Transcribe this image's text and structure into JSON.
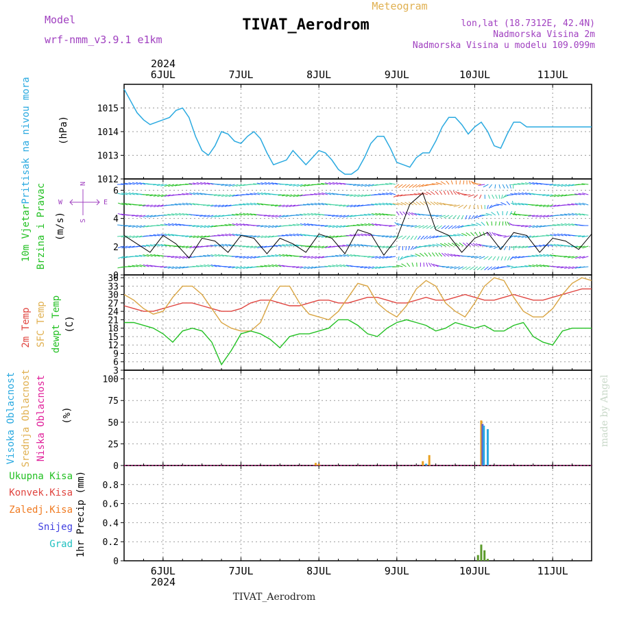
{
  "header": {
    "model_label": "Model",
    "model_value": "wrf-nmm_v3.9.1  e1km",
    "product": "Meteogram",
    "station": "TIVAT_Aerodrom",
    "lonlat": "lon,lat (18.7312E, 42.4N)",
    "elevation": "Nadmorska Visina 2m",
    "model_elevation": "Nadmorska Visina u modelu 109.099m",
    "credit": "made by Angel",
    "footer_station": "TIVAT_Aerodrom"
  },
  "time_axis": {
    "year": "2024",
    "labels": [
      "6JUL",
      "7JUL",
      "8JUL",
      "9JUL",
      "10JUL",
      "11JUL"
    ],
    "start_hour_before_first_label": 12,
    "hours_total": 144
  },
  "colors": {
    "pressure": "#29a9e0",
    "temp2m": "#e0443f",
    "sfc": "#d9a441",
    "dewpt": "#22c022",
    "cloud_high": "#29a9e0",
    "cloud_mid": "#e8a020",
    "cloud_low": "#e0209a",
    "precip_total": "#22c022",
    "precip_conv": "#e0443f",
    "precip_frozen": "#f07a20",
    "precip_snow": "#4040e0",
    "precip_hail": "#20c0c0",
    "wind_speed": "#000000"
  },
  "chart_data": [
    {
      "type": "line",
      "name": "pressure",
      "ylabel": "Pritisak na nivou mora",
      "unit": "(hPa)",
      "ylim": [
        1012,
        1016
      ],
      "yticks": [
        "1012",
        "1013",
        "1014",
        "1015"
      ],
      "x_hours": [
        0,
        2,
        4,
        6,
        8,
        10,
        12,
        14,
        16,
        18,
        20,
        22,
        24,
        26,
        28,
        30,
        32,
        34,
        36,
        38,
        40,
        42,
        44,
        46,
        48,
        50,
        52,
        54,
        56,
        58,
        60,
        62,
        64,
        66,
        68,
        70,
        72,
        74,
        76,
        78,
        80,
        82,
        84,
        86,
        88,
        90,
        92,
        94,
        96,
        98,
        100,
        102,
        104,
        106,
        108,
        110,
        112,
        114,
        116,
        118,
        120,
        122,
        124,
        126,
        128,
        130,
        132,
        134,
        136,
        138,
        140,
        142,
        144
      ],
      "values": [
        1015.8,
        1015.3,
        1014.8,
        1014.5,
        1014.3,
        1014.4,
        1014.5,
        1014.6,
        1014.9,
        1015.0,
        1014.6,
        1013.8,
        1013.2,
        1013.0,
        1013.4,
        1014.0,
        1013.9,
        1013.6,
        1013.5,
        1013.8,
        1014.0,
        1013.7,
        1013.1,
        1012.6,
        1012.7,
        1012.8,
        1013.2,
        1012.9,
        1012.6,
        1012.9,
        1013.2,
        1013.1,
        1012.8,
        1012.4,
        1012.2,
        1012.2,
        1012.4,
        1012.9,
        1013.5,
        1013.8,
        1013.8,
        1013.3,
        1012.7,
        1012.6,
        1012.5,
        1012.9,
        1013.1,
        1013.1,
        1013.6,
        1014.2,
        1014.6,
        1014.6,
        1014.3,
        1013.9,
        1014.2,
        1014.4,
        1014.0,
        1013.4,
        1013.3,
        1013.9,
        1014.4,
        1014.4,
        1014.2,
        1014.2,
        1014.2,
        1014.2,
        1014.2,
        1014.2,
        1014.2,
        1014.2,
        1014.2,
        1014.2,
        1014.2
      ]
    },
    {
      "type": "line",
      "name": "wind",
      "ylabel": "10m Vjetar Brzina i Pravac",
      "unit": "(m/s)",
      "ylim": [
        0,
        6.8
      ],
      "yticks": [
        "0",
        "2",
        "4",
        "6"
      ],
      "compass": {
        "n": "N",
        "s": "S",
        "w": "W",
        "e": "E"
      },
      "x_hours": [
        0,
        4,
        8,
        12,
        16,
        20,
        24,
        28,
        32,
        36,
        40,
        44,
        48,
        52,
        56,
        60,
        64,
        68,
        72,
        76,
        80,
        84,
        88,
        92,
        96,
        100,
        104,
        108,
        112,
        116,
        120,
        124,
        128,
        132,
        136,
        140,
        144
      ],
      "values": [
        2.8,
        2.2,
        1.6,
        2.8,
        2.2,
        1.2,
        2.6,
        2.4,
        1.6,
        2.8,
        2.6,
        1.5,
        2.6,
        2.2,
        1.6,
        2.9,
        2.6,
        1.5,
        3.2,
        2.9,
        1.4,
        2.6,
        5.0,
        5.8,
        3.2,
        2.8,
        1.6,
        2.6,
        3.0,
        1.8,
        3.0,
        2.8,
        1.6,
        2.6,
        2.4,
        1.8,
        2.9
      ]
    },
    {
      "type": "line",
      "name": "temperature",
      "ylabel_lines": [
        "2m Temp",
        "SFC Temp",
        "dewpt Temp"
      ],
      "unit": "(C)",
      "ylim": [
        3,
        37
      ],
      "yticks": [
        "3",
        "6",
        "9",
        "12",
        "15",
        "18",
        "21",
        "24",
        "27",
        "30",
        "33",
        "36"
      ],
      "x_hours": [
        0,
        3,
        6,
        9,
        12,
        15,
        18,
        21,
        24,
        27,
        30,
        33,
        36,
        39,
        42,
        45,
        48,
        51,
        54,
        57,
        60,
        63,
        66,
        69,
        72,
        75,
        78,
        81,
        84,
        87,
        90,
        93,
        96,
        99,
        102,
        105,
        108,
        111,
        114,
        117,
        120,
        123,
        126,
        129,
        132,
        135,
        138,
        141,
        144
      ],
      "series": [
        {
          "name": "2m Temp",
          "values": [
            26,
            25,
            24,
            24,
            25,
            26,
            27,
            27,
            26,
            25,
            24,
            24,
            25,
            27,
            28,
            28,
            27,
            26,
            26,
            27,
            28,
            28,
            27,
            27,
            28,
            29,
            29,
            28,
            27,
            27,
            28,
            29,
            28,
            28,
            29,
            30,
            29,
            28,
            28,
            29,
            30,
            29,
            28,
            28,
            29,
            30,
            31,
            32,
            32
          ]
        },
        {
          "name": "SFC Temp",
          "values": [
            30,
            28,
            25,
            23,
            24,
            29,
            33,
            33,
            30,
            25,
            20,
            18,
            17,
            17,
            20,
            28,
            33,
            33,
            27,
            23,
            22,
            21,
            24,
            29,
            34,
            33,
            27,
            24,
            22,
            26,
            32,
            35,
            33,
            27,
            24,
            22,
            27,
            33,
            36,
            35,
            29,
            24,
            22,
            22,
            25,
            30,
            34,
            36,
            35
          ]
        },
        {
          "name": "dewpt Temp",
          "values": [
            20,
            20,
            19,
            18,
            16,
            13,
            17,
            18,
            17,
            13,
            5,
            10,
            16,
            17,
            16,
            14,
            11,
            15,
            16,
            16,
            17,
            18,
            21,
            21,
            19,
            16,
            15,
            18,
            20,
            21,
            20,
            19,
            17,
            18,
            20,
            19,
            18,
            19,
            17,
            17,
            19,
            20,
            15,
            13,
            12,
            17,
            18,
            18,
            18
          ]
        }
      ]
    },
    {
      "type": "bar",
      "name": "clouds",
      "ylabel_lines": [
        "Visoka Oblacnost",
        "Srednja Oblacnost",
        "Niska Oblacnost"
      ],
      "unit": "(%)",
      "ylim": [
        0,
        110
      ],
      "yticks": [
        "0",
        "25",
        "50",
        "75",
        "100"
      ],
      "bars": [
        {
          "hour": 59,
          "series": "Srednja Oblacnost",
          "value": 3
        },
        {
          "hour": 60,
          "series": "Srednja Oblacnost",
          "value": 2
        },
        {
          "hour": 92,
          "series": "Srednja Oblacnost",
          "value": 5
        },
        {
          "hour": 94,
          "series": "Srednja Oblacnost",
          "value": 12
        },
        {
          "hour": 93,
          "series": "Visoka Oblacnost",
          "value": 2
        },
        {
          "hour": 110,
          "series": "Srednja Oblacnost",
          "value": 52
        },
        {
          "hour": 110.4,
          "series": "Niska Oblacnost",
          "value": 48
        },
        {
          "hour": 110.8,
          "series": "Visoka Oblacnost",
          "value": 46
        },
        {
          "hour": 112,
          "series": "Visoka Oblacnost",
          "value": 42
        }
      ]
    },
    {
      "type": "bar",
      "name": "precip",
      "ylabel": "1hr Precip (mm)",
      "legend": [
        "Ukupna Kisa",
        "Konvek.Kisa",
        "Zaledj.Kisa",
        "Snijeg",
        "Grad"
      ],
      "ylim": [
        0,
        1.0
      ],
      "yticks": [
        "0",
        "0.2",
        "0.4",
        "0.6",
        "0.8"
      ],
      "bars": [
        {
          "hour": 109,
          "value": 0.06
        },
        {
          "hour": 110,
          "value": 0.17
        },
        {
          "hour": 111,
          "value": 0.11
        },
        {
          "hour": 112,
          "value": 0.02
        }
      ]
    }
  ]
}
